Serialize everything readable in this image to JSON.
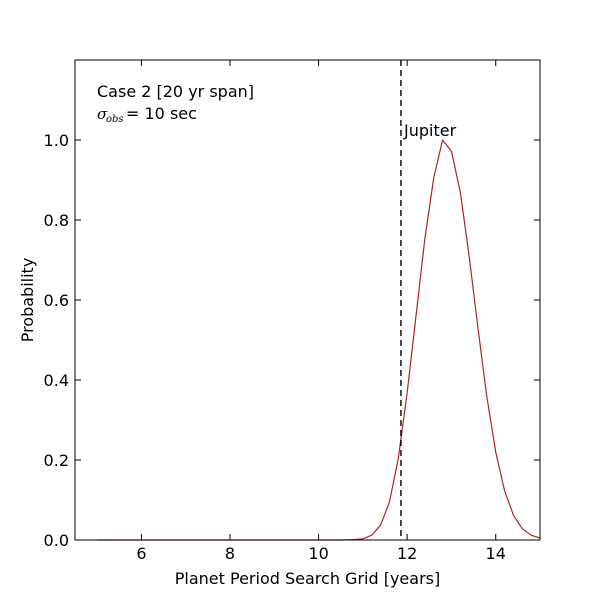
{
  "chart_data": {
    "type": "line",
    "xlabel": "Planet Period Search Grid [years]",
    "ylabel": "Probability",
    "xlim": [
      4.5,
      15.0
    ],
    "ylim": [
      0.0,
      1.2
    ],
    "xticks": [
      6,
      8,
      10,
      12,
      14
    ],
    "yticks": [
      0.0,
      0.2,
      0.4,
      0.6,
      0.8,
      1.0
    ],
    "ytick_labels": [
      "0.0",
      "0.2",
      "0.4",
      "0.6",
      "0.8",
      "1.0"
    ],
    "grid": false,
    "annotations": {
      "case_text": "Case 2 [20 yr span]",
      "sigma_symbol": "σ",
      "sigma_subscript": "obs",
      "sigma_value": "= 10 sec",
      "marker_label": "Jupiter"
    },
    "vertical_line": {
      "x": 11.86,
      "style": "dashed",
      "color": "#000000"
    },
    "series": [
      {
        "color": "#b22222",
        "x": [
          5.0,
          10.5,
          10.8,
          11.0,
          11.2,
          11.4,
          11.6,
          11.8,
          12.0,
          12.2,
          12.4,
          12.6,
          12.8,
          13.0,
          13.2,
          13.4,
          13.6,
          13.8,
          14.0,
          14.2,
          14.4,
          14.6,
          14.8,
          15.0
        ],
        "y": [
          0.0,
          0.0,
          0.001,
          0.003,
          0.012,
          0.037,
          0.095,
          0.204,
          0.368,
          0.56,
          0.753,
          0.905,
          1.0,
          0.972,
          0.87,
          0.71,
          0.529,
          0.358,
          0.22,
          0.123,
          0.062,
          0.028,
          0.012,
          0.005
        ]
      }
    ]
  }
}
